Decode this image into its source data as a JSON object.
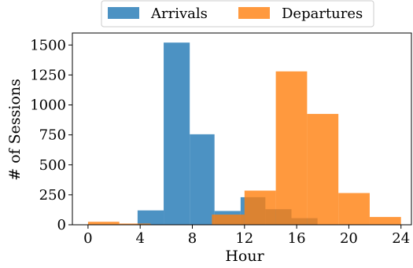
{
  "chart_data": {
    "type": "bar",
    "title": "",
    "xlabel": "Hour",
    "ylabel": "# of Sessions",
    "xlim": [
      -1.2,
      24.8
    ],
    "ylim": [
      0,
      1600
    ],
    "x_ticks": [
      0,
      4,
      8,
      12,
      16,
      20,
      24
    ],
    "y_ticks": [
      0,
      250,
      500,
      750,
      1000,
      1250,
      1500
    ],
    "grid": false,
    "legend_position": "top-center",
    "series": [
      {
        "name": "Arrivals",
        "color": "#1f77b4",
        "bins": [
          {
            "x0": 3.8,
            "x1": 5.8,
            "value": 120
          },
          {
            "x0": 5.8,
            "x1": 7.8,
            "value": 1520
          },
          {
            "x0": 7.8,
            "x1": 9.7,
            "value": 755
          },
          {
            "x0": 9.7,
            "x1": 11.7,
            "value": 115
          },
          {
            "x0": 11.7,
            "x1": 13.6,
            "value": 230
          },
          {
            "x0": 13.6,
            "x1": 15.6,
            "value": 130
          },
          {
            "x0": 15.6,
            "x1": 17.6,
            "value": 55
          }
        ]
      },
      {
        "name": "Departures",
        "color": "#ff7f0e",
        "bins": [
          {
            "x0": 0.0,
            "x1": 2.4,
            "value": 25
          },
          {
            "x0": 2.4,
            "x1": 4.8,
            "value": 10
          },
          {
            "x0": 9.5,
            "x1": 12.0,
            "value": 85
          },
          {
            "x0": 12.0,
            "x1": 14.4,
            "value": 285
          },
          {
            "x0": 14.4,
            "x1": 16.8,
            "value": 1280
          },
          {
            "x0": 16.8,
            "x1": 19.2,
            "value": 925
          },
          {
            "x0": 19.2,
            "x1": 21.6,
            "value": 265
          },
          {
            "x0": 21.6,
            "x1": 24.0,
            "value": 65
          }
        ]
      }
    ]
  }
}
